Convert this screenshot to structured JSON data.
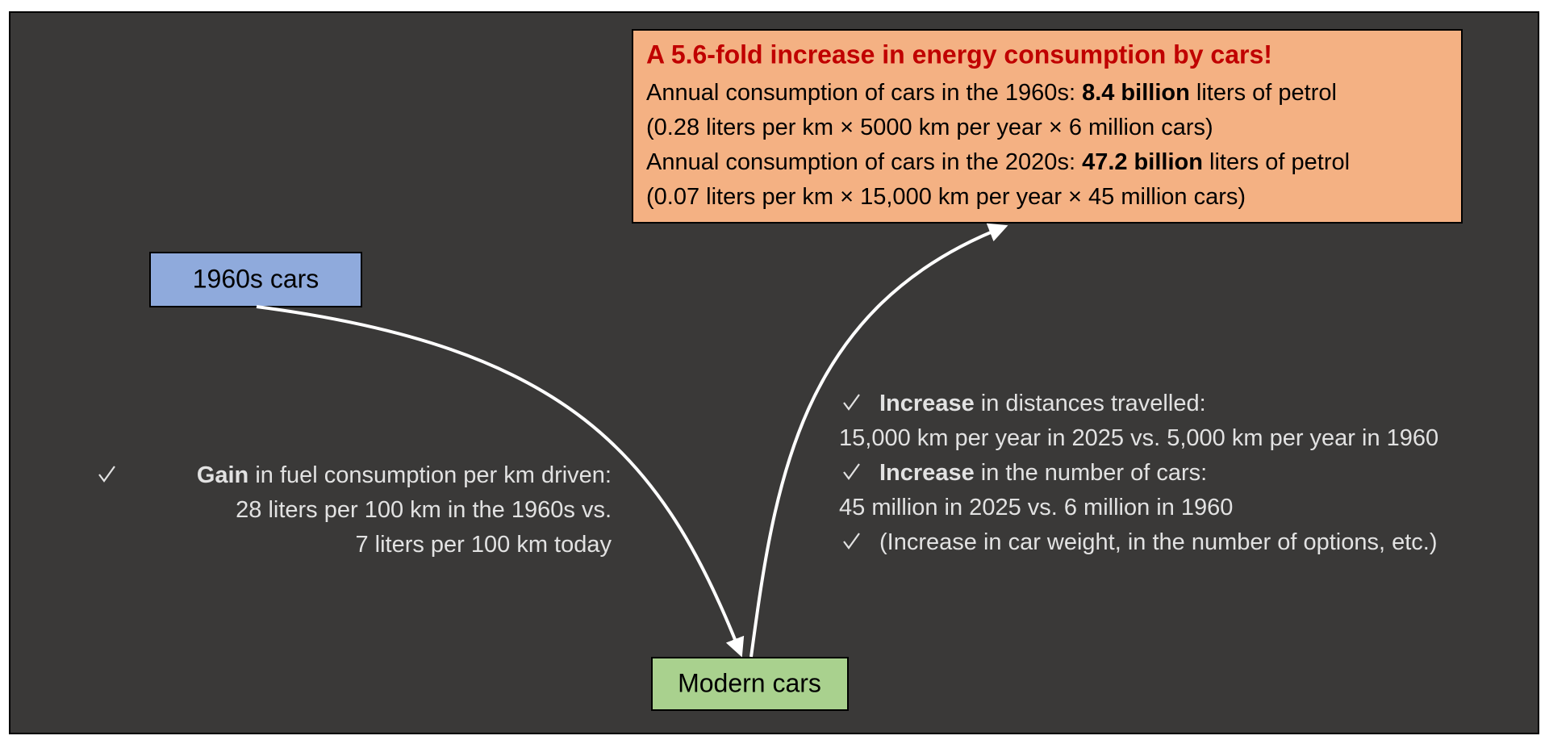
{
  "nodes": [
    {
      "label": "1960s cars"
    },
    {
      "label": "Modern cars"
    }
  ],
  "summary": {
    "title": "A 5.6-fold increase in energy consumption by cars!",
    "lines": [
      [
        {
          "text": "Annual consumption of cars in the 1960s: ",
          "bold": false
        },
        {
          "text": "8.4 billion",
          "bold": true
        },
        {
          "text": " liters of petrol",
          "bold": false
        }
      ],
      [
        {
          "text": "(0.28 liters per km × 5000 km per year × 6 million cars)",
          "bold": false
        }
      ],
      [
        {
          "text": "Annual consumption of cars in the 2020s: ",
          "bold": false
        },
        {
          "text": "47.2 billion",
          "bold": true
        },
        {
          "text": " liters of petrol",
          "bold": false
        }
      ],
      [
        {
          "text": "(0.07 liters per km × 15,000 km per year × 45 million cars)",
          "bold": false
        }
      ]
    ]
  },
  "left_note": {
    "items": [
      {
        "check": true,
        "segments": [
          {
            "text": "Gain",
            "bold": true
          },
          {
            "text": " in fuel consumption per km driven:",
            "bold": false
          }
        ]
      },
      {
        "check": false,
        "segments": [
          {
            "text": "28 liters per 100 km in the 1960s vs.",
            "bold": false
          }
        ]
      },
      {
        "check": false,
        "segments": [
          {
            "text": "7 liters per 100 km today",
            "bold": false
          }
        ]
      }
    ]
  },
  "right_note": {
    "items": [
      {
        "check": true,
        "segments": [
          {
            "text": "Increase",
            "bold": true
          },
          {
            "text": " in distances travelled:",
            "bold": false
          }
        ]
      },
      {
        "check": false,
        "segments": [
          {
            "text": "15,000 km per year in 2025 vs. 5,000 km per year in 1960",
            "bold": false
          }
        ]
      },
      {
        "check": true,
        "segments": [
          {
            "text": "Increase",
            "bold": true
          },
          {
            "text": " in the number of cars:",
            "bold": false
          }
        ]
      },
      {
        "check": false,
        "segments": [
          {
            "text": "45 million in 2025 vs. 6 million in 1960",
            "bold": false
          }
        ]
      },
      {
        "check": true,
        "segments": [
          {
            "text": "(Increase in car weight, in the number of options, etc.)",
            "bold": false
          }
        ]
      }
    ]
  }
}
